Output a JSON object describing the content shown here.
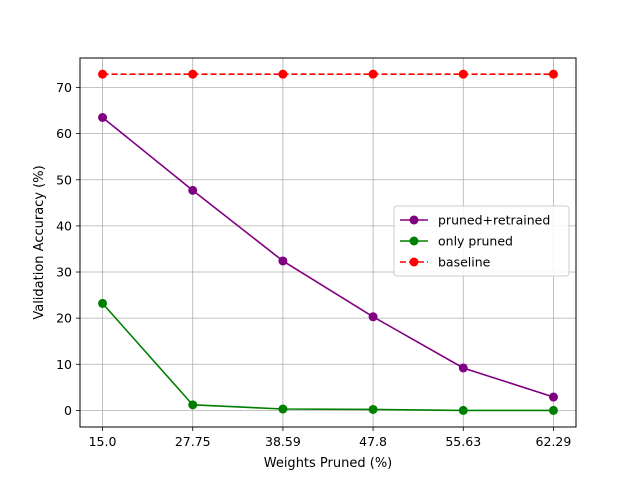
{
  "chart_data": {
    "type": "line",
    "categories": [
      "15.0",
      "27.75",
      "38.59",
      "47.8",
      "55.63",
      "62.29"
    ],
    "xlabel": "Weights Pruned (%)",
    "ylabel": "Validation Accuracy (%)",
    "ylim": [
      -3.6,
      76.4
    ],
    "yticks": [
      0,
      10,
      20,
      30,
      40,
      50,
      60,
      70
    ],
    "grid": true,
    "legend_position": "center-right",
    "series": [
      {
        "name": "pruned+retrained",
        "color": "#800080",
        "linestyle": "solid",
        "marker": "circle",
        "values": [
          63.5,
          47.7,
          32.4,
          20.3,
          9.2,
          2.9
        ]
      },
      {
        "name": "only pruned",
        "color": "#008000",
        "linestyle": "solid",
        "marker": "circle",
        "values": [
          23.2,
          1.2,
          0.3,
          0.2,
          0.0,
          0.0
        ]
      },
      {
        "name": "baseline",
        "color": "#ff0000",
        "linestyle": "dashed",
        "marker": "circle",
        "values": [
          72.9,
          72.9,
          72.9,
          72.9,
          72.9,
          72.9
        ]
      }
    ]
  }
}
